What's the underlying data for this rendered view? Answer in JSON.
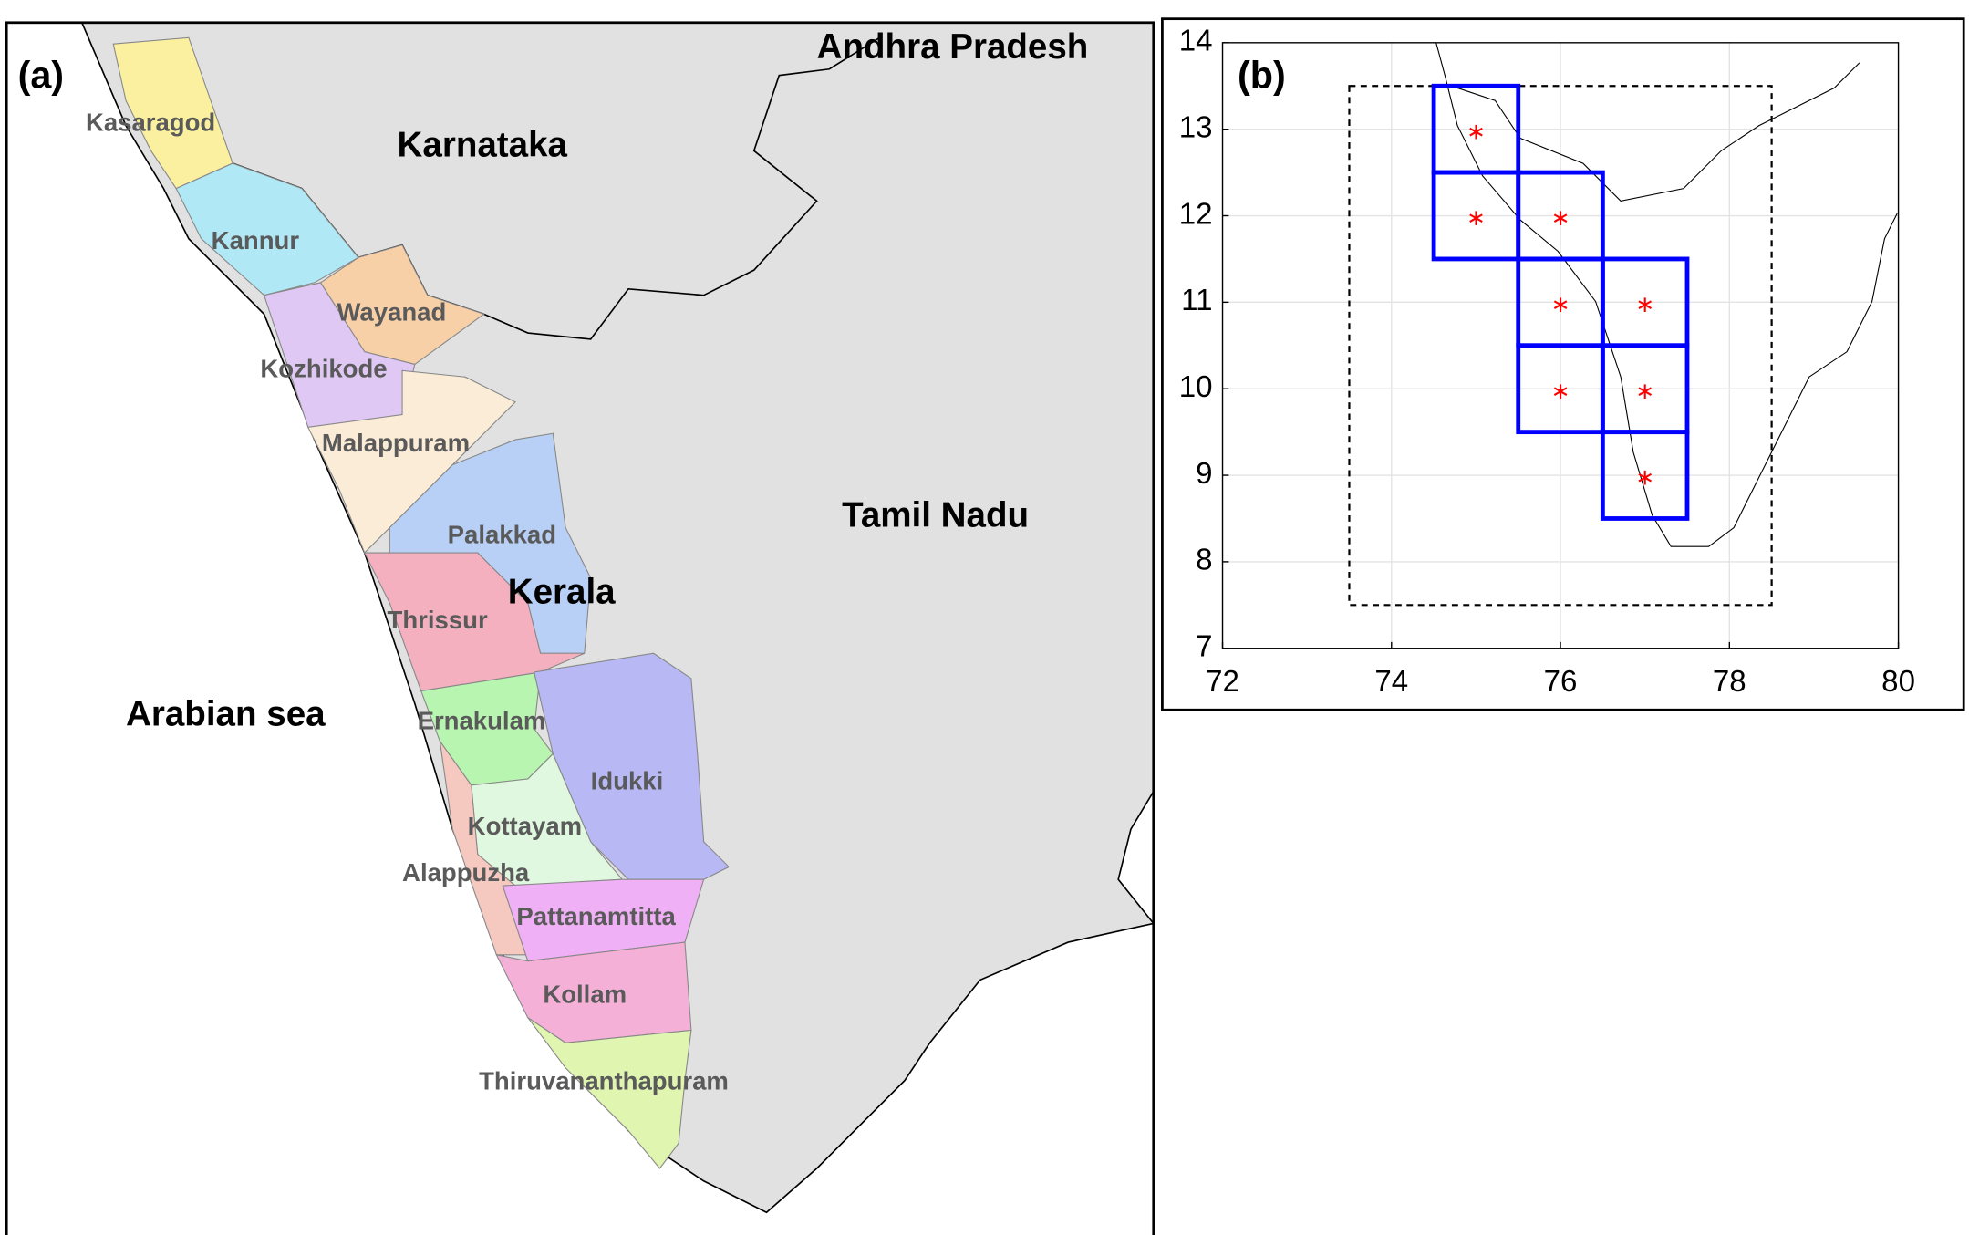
{
  "panel_a": {
    "label": "(a)",
    "states": [
      "Andhra Pradesh",
      "Karnataka",
      "Tamil Nadu",
      "Kerala",
      "Arabian sea"
    ],
    "districts": [
      "Kasaragod",
      "Kannur",
      "Wayanad",
      "Kozhikode",
      "Malappuram",
      "Palakkad",
      "Thrissur",
      "Ernakulam",
      "Idukki",
      "Kottayam",
      "Alappuzha",
      "Pattanamtitta",
      "Kollam",
      "Thiruvananthapuram"
    ]
  },
  "chart_data": {
    "type": "scatter",
    "label": "(b)",
    "xlim": [
      72,
      80
    ],
    "ylim": [
      7,
      14
    ],
    "xticks": [
      72,
      74,
      76,
      78,
      80
    ],
    "yticks": [
      7,
      8,
      9,
      10,
      11,
      12,
      13,
      14
    ],
    "grid": true,
    "series": [
      {
        "color": "#ff0000",
        "x": [
          75,
          75,
          76,
          76,
          77,
          76,
          77,
          77
        ],
        "values": [
          13,
          12,
          12,
          11,
          11,
          10,
          10,
          9
        ]
      }
    ],
    "box_color": "#0000ff",
    "boxes": [
      {
        "x": [
          74.5,
          75.5
        ],
        "y": [
          12.5,
          13.5
        ]
      },
      {
        "x": [
          74.5,
          75.5
        ],
        "y": [
          11.5,
          12.5
        ]
      },
      {
        "x": [
          75.5,
          76.5
        ],
        "y": [
          11.5,
          12.5
        ]
      },
      {
        "x": [
          75.5,
          76.5
        ],
        "y": [
          10.5,
          11.5
        ]
      },
      {
        "x": [
          76.5,
          77.5
        ],
        "y": [
          10.5,
          11.5
        ]
      },
      {
        "x": [
          75.5,
          76.5
        ],
        "y": [
          9.5,
          10.5
        ]
      },
      {
        "x": [
          76.5,
          77.5
        ],
        "y": [
          9.5,
          10.5
        ]
      },
      {
        "x": [
          76.5,
          77.5
        ],
        "y": [
          8.5,
          9.5
        ]
      }
    ],
    "outer_box": {
      "x": [
        73.5,
        78.5
      ],
      "y": [
        7.5,
        13.5
      ]
    }
  }
}
